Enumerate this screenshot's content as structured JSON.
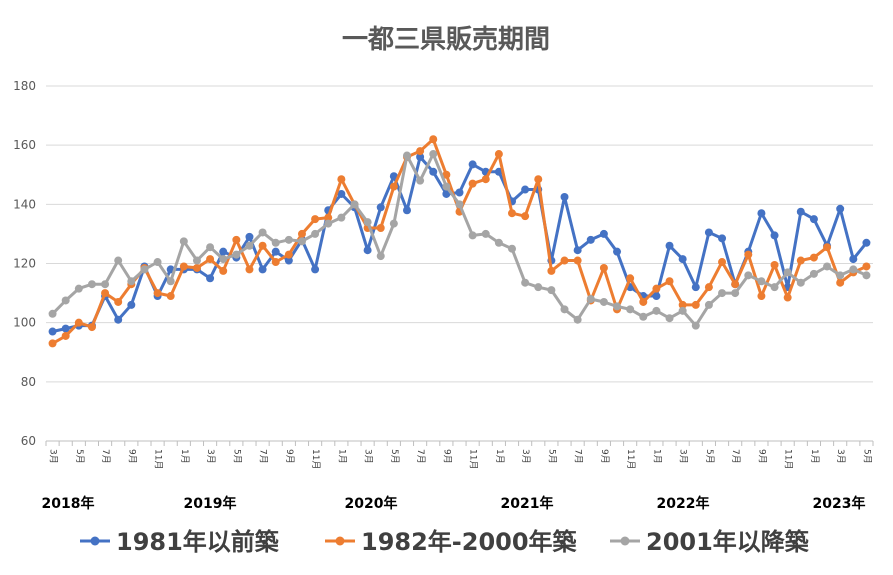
{
  "chart_data": {
    "type": "line",
    "title": "一都三県販売期間",
    "xlabel": "",
    "ylabel": "",
    "ylim": [
      60,
      180
    ],
    "yticks": [
      60,
      80,
      100,
      120,
      140,
      160,
      180
    ],
    "grid": true,
    "legend_position": "bottom",
    "categories": [
      "2018-03",
      "2018-04",
      "2018-05",
      "2018-06",
      "2018-07",
      "2018-08",
      "2018-09",
      "2018-10",
      "2018-11",
      "2018-12",
      "2019-01",
      "2019-02",
      "2019-03",
      "2019-04",
      "2019-05",
      "2019-06",
      "2019-07",
      "2019-08",
      "2019-09",
      "2019-10",
      "2019-11",
      "2019-12",
      "2020-01",
      "2020-02",
      "2020-03",
      "2020-04",
      "2020-05",
      "2020-06",
      "2020-07",
      "2020-08",
      "2020-09",
      "2020-10",
      "2020-11",
      "2020-12",
      "2021-01",
      "2021-02",
      "2021-03",
      "2021-04",
      "2021-05",
      "2021-06",
      "2021-07",
      "2021-08",
      "2021-09",
      "2021-10",
      "2021-11",
      "2021-12",
      "2022-01",
      "2022-02",
      "2022-03",
      "2022-04",
      "2022-05",
      "2022-06",
      "2022-07",
      "2022-08",
      "2022-09",
      "2022-10",
      "2022-11",
      "2022-12",
      "2023-01",
      "2023-02",
      "2023-03",
      "2023-04",
      "2023-05"
    ],
    "month_tick_labels": [
      "3月",
      "5月",
      "7月",
      "9月",
      "11月",
      "1月",
      "3月",
      "5月",
      "7月",
      "9月",
      "11月",
      "1月",
      "3月",
      "5月",
      "7月",
      "9月",
      "11月",
      "1月",
      "3月",
      "5月",
      "7月",
      "9月",
      "11月",
      "1月",
      "3月",
      "5月",
      "7月",
      "9月",
      "11月",
      "1月",
      "3月",
      "5月"
    ],
    "year_labels": [
      "2018年",
      "2019年",
      "2020年",
      "2021年",
      "2022年",
      "2023年"
    ],
    "series": [
      {
        "name": "1981年以前築",
        "color": "#4472C4",
        "values": [
          97,
          98,
          99,
          99,
          109,
          101,
          106,
          119,
          109,
          118,
          118,
          118,
          115,
          124,
          122,
          129,
          118,
          124,
          121,
          128,
          118,
          138,
          143.5,
          139,
          124.5,
          139,
          149.5,
          138,
          156,
          151,
          143.5,
          144,
          153.5,
          151,
          151,
          141,
          145,
          145,
          121,
          142.5,
          124.5,
          128,
          130,
          124,
          112,
          109,
          109,
          126,
          121.5,
          112,
          130.5,
          128.5,
          113,
          124,
          137,
          129.5,
          112,
          137.5,
          135,
          126,
          138.5,
          121.5,
          127
        ]
      },
      {
        "name": "1982年-2000年築",
        "color": "#ED7D31",
        "values": [
          93,
          95.5,
          100,
          98.5,
          110,
          107,
          113,
          118.5,
          110,
          109,
          119,
          118.5,
          121.5,
          117.5,
          128,
          118,
          126,
          120.5,
          123,
          130,
          135,
          135.5,
          148.5,
          140,
          132,
          132,
          146,
          156,
          158,
          162,
          150,
          137.5,
          147,
          148.5,
          157,
          137,
          136,
          148.5,
          117.5,
          121,
          121,
          107.5,
          118.5,
          104.5,
          115,
          107,
          111.5,
          114,
          106,
          106,
          112,
          120.5,
          113,
          123,
          109,
          119.5,
          108.5,
          121,
          122,
          125.5,
          113.5,
          117,
          119
        ]
      },
      {
        "name": "2001年以降築",
        "color": "#A5A5A5",
        "values": [
          103,
          107.5,
          111.5,
          113,
          113,
          121,
          114,
          118,
          120.5,
          114,
          127.5,
          121,
          125.5,
          121.5,
          123,
          126,
          130.5,
          127,
          128,
          127.5,
          130,
          133.5,
          135.5,
          140,
          134,
          122.5,
          133.5,
          156.5,
          148,
          157,
          146,
          140,
          129.5,
          130,
          127,
          125,
          113.5,
          112,
          111,
          104.5,
          101,
          108,
          107,
          105.5,
          104.5,
          102,
          104,
          101.5,
          104,
          99,
          106,
          110,
          110,
          116,
          114,
          112,
          117,
          113.5,
          116.5,
          119,
          116,
          118,
          116
        ]
      }
    ]
  }
}
